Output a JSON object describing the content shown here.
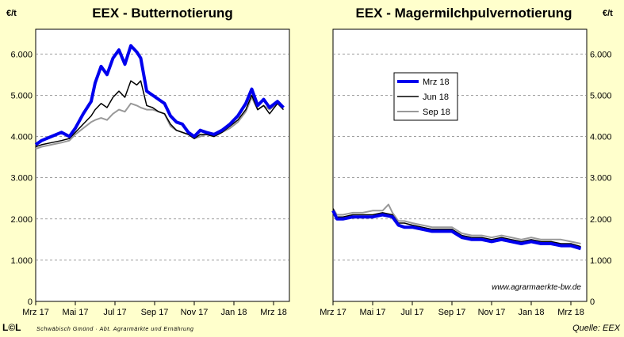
{
  "chart_data": [
    {
      "type": "line",
      "title": "EEX - Butternotierung",
      "unit": "€/t",
      "xlim": [
        0,
        12.8
      ],
      "ylim": [
        0,
        6600
      ],
      "y_ticks": [
        0,
        1000,
        2000,
        3000,
        4000,
        5000,
        6000
      ],
      "y_tick_labels": [
        "0",
        "1.000",
        "2.000",
        "3.000",
        "4.000",
        "5.000",
        "6.000"
      ],
      "x_ticks": [
        0,
        2,
        4,
        6,
        8,
        10,
        12
      ],
      "x_tick_labels": [
        "Mrz 17",
        "Mai 17",
        "Jul 17",
        "Sep 17",
        "Nov 17",
        "Jan 18",
        "Mrz 18"
      ],
      "grid": "horizontal-dashed",
      "series": [
        {
          "name": "Mrz 18",
          "color": "#0000ee",
          "width": 4,
          "x": [
            0,
            0.3,
            0.8,
            1.3,
            1.7,
            2.0,
            2.4,
            2.8,
            3.0,
            3.3,
            3.6,
            3.9,
            4.2,
            4.5,
            4.8,
            5.1,
            5.3,
            5.6,
            5.9,
            6.2,
            6.5,
            6.8,
            7.1,
            7.4,
            7.7,
            8.0,
            8.3,
            8.6,
            9.0,
            9.4,
            9.8,
            10.2,
            10.6,
            10.9,
            11.2,
            11.5,
            11.8,
            12.2,
            12.5
          ],
          "y": [
            3800,
            3900,
            4000,
            4100,
            4000,
            4200,
            4550,
            4850,
            5300,
            5700,
            5500,
            5900,
            6100,
            5750,
            6200,
            6050,
            5900,
            5100,
            5000,
            4900,
            4800,
            4500,
            4350,
            4300,
            4100,
            4000,
            4150,
            4100,
            4050,
            4150,
            4300,
            4500,
            4800,
            5150,
            4750,
            4900,
            4700,
            4850,
            4700
          ]
        },
        {
          "name": "Jun 18",
          "color": "#000000",
          "width": 1.5,
          "x": [
            0,
            0.3,
            0.8,
            1.3,
            1.7,
            2.0,
            2.4,
            2.8,
            3.0,
            3.3,
            3.6,
            3.9,
            4.2,
            4.5,
            4.8,
            5.1,
            5.3,
            5.6,
            5.9,
            6.2,
            6.5,
            6.8,
            7.1,
            7.4,
            7.7,
            8.0,
            8.3,
            8.6,
            9.0,
            9.4,
            9.8,
            10.2,
            10.6,
            10.9,
            11.2,
            11.5,
            11.8,
            12.2,
            12.5
          ],
          "y": [
            3750,
            3800,
            3850,
            3900,
            3950,
            4100,
            4300,
            4500,
            4650,
            4800,
            4700,
            4950,
            5100,
            4950,
            5350,
            5250,
            5350,
            4750,
            4700,
            4600,
            4550,
            4300,
            4150,
            4100,
            4050,
            3950,
            4050,
            4050,
            4000,
            4100,
            4250,
            4400,
            4650,
            5000,
            4650,
            4750,
            4550,
            4800,
            4650
          ]
        },
        {
          "name": "Sep 18",
          "color": "#999999",
          "width": 2,
          "x": [
            0,
            0.3,
            0.8,
            1.3,
            1.7,
            2.0,
            2.4,
            2.8,
            3.0,
            3.3,
            3.6,
            3.9,
            4.2,
            4.5,
            4.8,
            5.1,
            5.3,
            5.6,
            5.9,
            6.2,
            6.5,
            6.8,
            7.1,
            7.4,
            7.7,
            8.0,
            8.3,
            8.6,
            9.0,
            9.4,
            9.8,
            10.2,
            10.6,
            10.9,
            11.2,
            11.5,
            11.8,
            12.2,
            12.5
          ],
          "y": [
            3700,
            3750,
            3800,
            3850,
            3900,
            4050,
            4200,
            4350,
            4400,
            4450,
            4400,
            4550,
            4650,
            4600,
            4800,
            4750,
            4700,
            4650,
            4650,
            4600,
            4550,
            4250,
            4150,
            4100,
            4050,
            3950,
            4000,
            4050,
            4000,
            4100,
            4200,
            4350,
            4600,
            4950,
            4650,
            4750,
            4650,
            4800,
            4700
          ]
        }
      ]
    },
    {
      "type": "line",
      "title": "EEX - Magermilchpulvernotierung",
      "unit": "€/t",
      "xlim": [
        0,
        12.8
      ],
      "ylim": [
        0,
        6600
      ],
      "y_ticks": [
        0,
        1000,
        2000,
        3000,
        4000,
        5000,
        6000
      ],
      "y_tick_labels": [
        "0",
        "1.000",
        "2.000",
        "3.000",
        "4.000",
        "5.000",
        "6.000"
      ],
      "x_ticks": [
        0,
        2,
        4,
        6,
        8,
        10,
        12
      ],
      "x_tick_labels": [
        "Mrz 17",
        "Mai 17",
        "Jul 17",
        "Sep 17",
        "Nov 17",
        "Jan 18",
        "Mrz 18"
      ],
      "grid": "horizontal-dashed",
      "legend_position": "top-left",
      "annotation": "www.agrarmaerkte-bw.de",
      "series": [
        {
          "name": "Mrz 18",
          "color": "#0000ee",
          "width": 4,
          "x": [
            0,
            0.2,
            0.5,
            1.0,
            1.5,
            2.0,
            2.5,
            3.0,
            3.3,
            3.6,
            4.0,
            4.5,
            5.0,
            5.5,
            6.0,
            6.5,
            7.0,
            7.5,
            8.0,
            8.5,
            9.0,
            9.5,
            10.0,
            10.5,
            11.0,
            11.5,
            12.0,
            12.5
          ],
          "y": [
            2200,
            2000,
            2000,
            2050,
            2050,
            2050,
            2100,
            2050,
            1850,
            1800,
            1800,
            1750,
            1700,
            1700,
            1700,
            1550,
            1500,
            1500,
            1450,
            1500,
            1450,
            1400,
            1450,
            1400,
            1400,
            1350,
            1350,
            1280
          ]
        },
        {
          "name": "Jun 18",
          "color": "#000000",
          "width": 1.5,
          "x": [
            0,
            0.2,
            0.5,
            1.0,
            1.5,
            2.0,
            2.5,
            3.0,
            3.3,
            3.6,
            4.0,
            4.5,
            5.0,
            5.5,
            6.0,
            6.5,
            7.0,
            7.5,
            8.0,
            8.5,
            9.0,
            9.5,
            10.0,
            10.5,
            11.0,
            11.5,
            12.0,
            12.5
          ],
          "y": [
            2250,
            2050,
            2050,
            2100,
            2100,
            2100,
            2150,
            2100,
            1900,
            1900,
            1850,
            1800,
            1750,
            1750,
            1750,
            1600,
            1550,
            1550,
            1500,
            1550,
            1500,
            1450,
            1500,
            1450,
            1450,
            1400,
            1400,
            1330
          ]
        },
        {
          "name": "Sep 18",
          "color": "#999999",
          "width": 2,
          "x": [
            0,
            0.2,
            0.5,
            1.0,
            1.5,
            2.0,
            2.5,
            2.8,
            3.0,
            3.3,
            3.6,
            4.0,
            4.5,
            5.0,
            5.5,
            6.0,
            6.5,
            7.0,
            7.5,
            8.0,
            8.5,
            9.0,
            9.5,
            10.0,
            10.5,
            11.0,
            11.5,
            12.0,
            12.5
          ],
          "y": [
            2250,
            2100,
            2100,
            2150,
            2150,
            2200,
            2200,
            2350,
            2150,
            1950,
            1950,
            1900,
            1850,
            1800,
            1800,
            1800,
            1650,
            1600,
            1600,
            1550,
            1600,
            1550,
            1500,
            1550,
            1500,
            1500,
            1500,
            1450,
            1400
          ]
        }
      ]
    }
  ],
  "footer": {
    "logo": "L©L",
    "copyright_symbol": "©",
    "text": "Schwäbisch Gmünd · Abt. Agrarmärkte und Ernährung",
    "source": "Quelle: EEX"
  }
}
